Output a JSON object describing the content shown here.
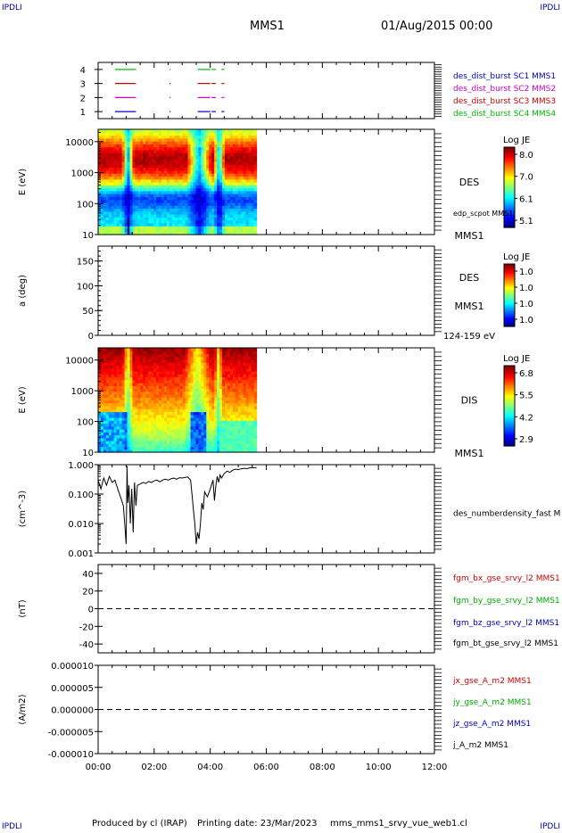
{
  "header": {
    "corner_left": "IPDLI",
    "corner_right": "IPDLI",
    "mission": "MMS1",
    "datetime": "01/Aug/2015 00:00",
    "corner_color": "#0000aa"
  },
  "footer": {
    "produced_by": "Produced by cl (IRAP)",
    "printing_date": "Printing date: 23/Mar/2023",
    "filename": "mms_mms1_srvy_vue_web1.cl",
    "corner_left": "IPDLI",
    "corner_right": "IPDLI"
  },
  "chart_data": [
    {
      "type": "line",
      "panel": "spacecraft-availability",
      "yticks": [
        "1",
        "2",
        "3",
        "4"
      ],
      "ylim": [
        0.5,
        4.5
      ],
      "x_unit": "hours",
      "legend": [
        {
          "text": "des_dist_burst SC1 MMS1",
          "color": "#0000cc"
        },
        {
          "text": "des_dist_burst SC2 MMS2",
          "color": "#cc00cc"
        },
        {
          "text": "des_dist_burst SC3 MMS3",
          "color": "#cc0000"
        },
        {
          "text": "des_dist_burst SC4 MMS4",
          "color": "#00bb00"
        }
      ],
      "series": [
        {
          "name": "des_dist_burst SC4 MMS4",
          "y": 4,
          "segments": [
            [
              0.6,
              1.35
            ],
            [
              2.55,
              2.57
            ],
            [
              3.55,
              4.0
            ],
            [
              4.05,
              4.2
            ],
            [
              4.4,
              4.5
            ]
          ]
        },
        {
          "name": "des_dist_burst SC3 MMS3",
          "y": 3,
          "segments": [
            [
              0.6,
              1.35
            ],
            [
              2.55,
              2.57
            ],
            [
              3.55,
              4.0
            ],
            [
              4.05,
              4.2
            ],
            [
              4.4,
              4.5
            ]
          ]
        },
        {
          "name": "des_dist_burst SC2 MMS2",
          "y": 2,
          "segments": [
            [
              0.6,
              1.35
            ],
            [
              2.55,
              2.57
            ],
            [
              3.55,
              4.0
            ],
            [
              4.05,
              4.2
            ],
            [
              4.4,
              4.5
            ]
          ]
        },
        {
          "name": "des_dist_burst SC1 MMS1",
          "y": 1,
          "segments": [
            [
              0.6,
              1.35
            ],
            [
              2.55,
              2.57
            ],
            [
              3.55,
              4.0
            ],
            [
              4.05,
              4.2
            ],
            [
              4.4,
              4.5
            ]
          ]
        }
      ]
    },
    {
      "type": "heatmap",
      "panel": "des-energy-spectrogram",
      "ylabel": "E (eV)",
      "ytick_labels": [
        "10",
        "100",
        "1000",
        "10000"
      ],
      "ylim": [
        10,
        25000
      ],
      "yscale": "log",
      "data_xlim": [
        0,
        5.65
      ],
      "label_right": "DES",
      "label_right2": "MMS1",
      "overlay_label": "edp_scpot MMS1",
      "colorbar": {
        "title": "Log JE",
        "ticks": [
          "8.0",
          "7.0",
          "6.1",
          "5.1"
        ],
        "range": [
          5.1,
          8.3
        ]
      },
      "dropouts": [
        {
          "center": 1.07,
          "width": 0.22
        },
        {
          "center": 3.6,
          "width": 0.45
        },
        {
          "center": 4.32,
          "width": 0.2
        }
      ],
      "scpot_spikes": [
        [
          1.08,
          30
        ],
        [
          1.22,
          12
        ]
      ]
    },
    {
      "type": "heatmap",
      "panel": "des-pitch-angle",
      "ylabel": "a (deg)",
      "ytick_labels": [
        "0",
        "50",
        "100",
        "150"
      ],
      "ylim": [
        0,
        180
      ],
      "label_right": "DES",
      "label_right2": "MMS1",
      "label_energy": "124-159 eV",
      "colorbar": {
        "title": "Log JE",
        "ticks": [
          "1.0",
          "1.0",
          "1.0",
          "1.0"
        ]
      },
      "empty": true
    },
    {
      "type": "heatmap",
      "panel": "dis-energy-spectrogram",
      "ylabel": "E (eV)",
      "ytick_labels": [
        "10",
        "100",
        "1000",
        "10000"
      ],
      "ylim": [
        10,
        25000
      ],
      "yscale": "log",
      "data_xlim": [
        0,
        5.65
      ],
      "label_right": "DIS",
      "label_right2": "MMS1",
      "colorbar": {
        "title": "Log JE",
        "ticks": [
          "6.8",
          "5.5",
          "4.2",
          "2.9"
        ],
        "range": [
          2.9,
          7.1
        ]
      },
      "dropouts": [
        {
          "center": 1.07,
          "width": 0.2
        },
        {
          "center": 3.55,
          "width": 0.5
        },
        {
          "center": 4.3,
          "width": 0.15
        }
      ]
    },
    {
      "type": "line",
      "panel": "number-density",
      "ylabel": "(cm^-3)",
      "ytick_labels": [
        "0.001",
        "0.010",
        "0.100",
        "1.000"
      ],
      "ylim": [
        0.001,
        1.0
      ],
      "yscale": "log",
      "series_label": "des_numberdensity_fast M",
      "series": [
        {
          "name": "des_numberdensity_fast M",
          "x": [
            0.0,
            0.1,
            0.2,
            0.3,
            0.4,
            0.5,
            0.6,
            0.7,
            0.8,
            0.9,
            0.95,
            1.0,
            1.03,
            1.06,
            1.1,
            1.15,
            1.2,
            1.25,
            1.3,
            1.35,
            1.4,
            1.5,
            1.6,
            1.7,
            1.8,
            1.9,
            2.0,
            2.1,
            2.2,
            2.3,
            2.4,
            2.5,
            2.6,
            2.7,
            2.8,
            2.9,
            3.0,
            3.1,
            3.2,
            3.3,
            3.35,
            3.4,
            3.45,
            3.5,
            3.55,
            3.6,
            3.65,
            3.7,
            3.75,
            3.8,
            3.9,
            4.0,
            4.1,
            4.15,
            4.2,
            4.25,
            4.3,
            4.35,
            4.4,
            4.5,
            4.6,
            4.7,
            4.8,
            4.9,
            5.0,
            5.1,
            5.2,
            5.3,
            5.4,
            5.5,
            5.6,
            5.65
          ],
          "y": [
            0.3,
            0.15,
            0.35,
            0.2,
            0.4,
            0.25,
            0.3,
            0.15,
            0.08,
            0.04,
            0.01,
            0.002,
            0.9,
            0.05,
            0.2,
            0.01,
            0.15,
            0.005,
            0.25,
            0.04,
            0.2,
            0.22,
            0.25,
            0.23,
            0.27,
            0.25,
            0.28,
            0.3,
            0.26,
            0.3,
            0.32,
            0.3,
            0.33,
            0.35,
            0.32,
            0.36,
            0.35,
            0.37,
            0.38,
            0.3,
            0.1,
            0.03,
            0.01,
            0.002,
            0.005,
            0.003,
            0.01,
            0.05,
            0.03,
            0.12,
            0.08,
            0.15,
            0.3,
            0.06,
            0.2,
            0.4,
            0.25,
            0.45,
            0.35,
            0.5,
            0.6,
            0.55,
            0.65,
            0.7,
            0.68,
            0.72,
            0.75,
            0.73,
            0.78,
            0.8,
            0.78,
            0.8
          ]
        }
      ]
    },
    {
      "type": "line",
      "panel": "magnetic-field",
      "ylabel": "(nT)",
      "ytick_labels": [
        "-40",
        "-20",
        "0",
        "20",
        "40"
      ],
      "ylim": [
        -50,
        50
      ],
      "zero_line": true,
      "legend": [
        {
          "text": "fgm_bx_gse_srvy_l2 MMS1",
          "color": "#cc0000"
        },
        {
          "text": "fgm_by_gse_srvy_l2 MMS1",
          "color": "#00aa00"
        },
        {
          "text": "fgm_bz_gse_srvy_l2 MMS1",
          "color": "#0000cc"
        },
        {
          "text": "fgm_bt_gse_srvy_l2 MMS1",
          "color": "#000000"
        }
      ]
    },
    {
      "type": "line",
      "panel": "current-density",
      "ylabel": "(A/m2)",
      "ytick_labels": [
        "-0.000010",
        "-0.000005",
        "0.000000",
        "0.000005",
        "0.000010"
      ],
      "ylim": [
        -1e-05,
        1e-05
      ],
      "zero_line": true,
      "legend": [
        {
          "text": "jx_gse_A_m2 MMS1",
          "color": "#cc0000"
        },
        {
          "text": "jy_gse_A_m2 MMS1",
          "color": "#00aa00"
        },
        {
          "text": "jz_gse_A_m2 MMS1",
          "color": "#0000cc"
        },
        {
          "text": "j_A_m2 MMS1",
          "color": "#000000"
        }
      ]
    }
  ],
  "x_axis": {
    "tick_labels": [
      "00:00",
      "02:00",
      "04:00",
      "06:00",
      "08:00",
      "10:00",
      "12:00"
    ],
    "range_hours": [
      0,
      12
    ]
  }
}
